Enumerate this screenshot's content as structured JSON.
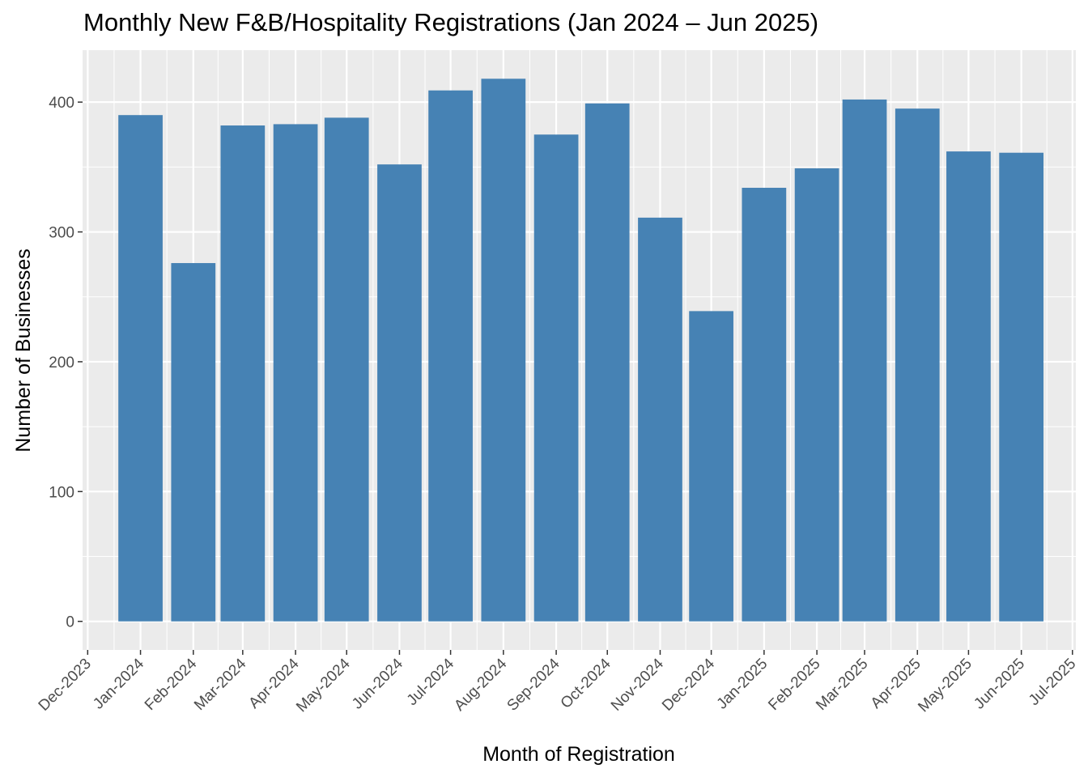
{
  "chart_data": {
    "type": "bar",
    "title": "Monthly New F&B/Hospitality Registrations (Jan 2024 – Jun 2025)",
    "xlabel": "Month of Registration",
    "ylabel": "Number of Businesses",
    "x_tick_labels": [
      "Dec-2023",
      "Jan-2024",
      "Feb-2024",
      "Mar-2024",
      "Apr-2024",
      "May-2024",
      "Jun-2024",
      "Jul-2024",
      "Aug-2024",
      "Sep-2024",
      "Oct-2024",
      "Nov-2024",
      "Dec-2024",
      "Jan-2025",
      "Feb-2025",
      "Mar-2025",
      "Apr-2025",
      "May-2025",
      "Jun-2025",
      "Jul-2025"
    ],
    "categories": [
      "Jan-2024",
      "Feb-2024",
      "Mar-2024",
      "Apr-2024",
      "May-2024",
      "Jun-2024",
      "Jul-2024",
      "Aug-2024",
      "Sep-2024",
      "Oct-2024",
      "Nov-2024",
      "Dec-2024",
      "Jan-2025",
      "Feb-2025",
      "Mar-2025",
      "Apr-2025",
      "May-2025",
      "Jun-2025"
    ],
    "values": [
      390,
      276,
      382,
      383,
      388,
      352,
      409,
      418,
      375,
      399,
      311,
      239,
      334,
      349,
      402,
      395,
      362,
      361
    ],
    "y_ticks": [
      0,
      100,
      200,
      300,
      400
    ],
    "ylim": [
      -22,
      440
    ],
    "xlim": [
      "2023-11-28",
      "2025-07-03"
    ],
    "bar_color": "#4682B4",
    "panel_background": "#EBEBEB",
    "grid": true,
    "legend": "none"
  }
}
